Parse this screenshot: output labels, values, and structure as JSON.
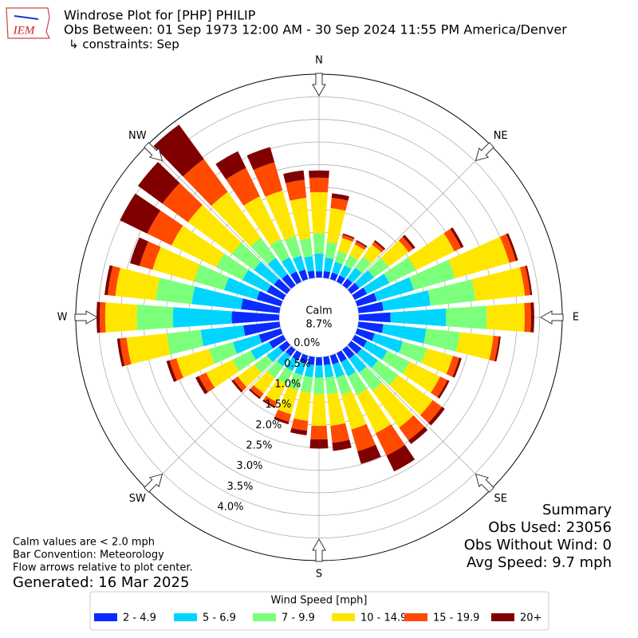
{
  "chart_data": {
    "type": "windrose",
    "logo_text": "IEM",
    "title": "Windrose Plot for [PHP] PHILIP",
    "subtitle": "Obs Between: 01 Sep 1973 12:00 AM - 30 Sep 2024 11:55 PM America/Denver",
    "constraints": "↳ constraints: Sep",
    "x": [
      0,
      10,
      20,
      30,
      40,
      50,
      60,
      70,
      80,
      90,
      100,
      110,
      120,
      130,
      140,
      150,
      160,
      170,
      180,
      190,
      200,
      210,
      220,
      230,
      240,
      250,
      260,
      270,
      280,
      290,
      300,
      310,
      320,
      330,
      340,
      350
    ],
    "series": [
      {
        "name": "2 - 4.9",
        "color": "#0a2bff",
        "values": [
          0.14,
          0.15,
          0.15,
          0.15,
          0.18,
          0.22,
          0.3,
          0.45,
          0.55,
          0.7,
          0.55,
          0.4,
          0.3,
          0.28,
          0.25,
          0.22,
          0.2,
          0.18,
          0.18,
          0.18,
          0.18,
          0.18,
          0.18,
          0.22,
          0.35,
          0.5,
          0.8,
          1.05,
          0.85,
          0.55,
          0.4,
          0.35,
          0.3,
          0.25,
          0.22,
          0.16
        ]
      },
      {
        "name": "5 - 6.9",
        "color": "#00d5ff",
        "values": [
          0.39,
          0.3,
          0.25,
          0.25,
          0.3,
          0.4,
          0.55,
          0.85,
          1.05,
          1.23,
          0.95,
          0.65,
          0.5,
          0.45,
          0.38,
          0.35,
          0.3,
          0.28,
          0.27,
          0.27,
          0.27,
          0.26,
          0.28,
          0.32,
          0.45,
          0.6,
          0.95,
          1.3,
          1.1,
          0.75,
          0.6,
          0.55,
          0.45,
          0.35,
          0.32,
          0.32
        ]
      },
      {
        "name": "7 - 9.9",
        "color": "#7cff7a",
        "values": [
          0.45,
          0.35,
          0.25,
          0.25,
          0.3,
          0.4,
          0.65,
          0.95,
          1.0,
          0.9,
          0.75,
          0.55,
          0.55,
          0.55,
          0.5,
          0.45,
          0.4,
          0.37,
          0.37,
          0.35,
          0.35,
          0.32,
          0.32,
          0.35,
          0.45,
          0.55,
          0.75,
          0.8,
          0.8,
          0.7,
          0.65,
          0.6,
          0.55,
          0.45,
          0.45,
          0.4
        ]
      },
      {
        "name": "10 - 14.9",
        "color": "#ffe600",
        "values": [
          0.91,
          0.75,
          0.3,
          0.27,
          0.33,
          0.55,
          0.95,
          1.25,
          1.1,
          0.84,
          0.75,
          0.6,
          0.75,
          0.95,
          1.0,
          0.95,
          0.8,
          0.7,
          0.7,
          0.62,
          0.55,
          0.45,
          0.42,
          0.45,
          0.65,
          0.75,
          0.9,
          0.7,
          0.9,
          0.95,
          1.1,
          1.2,
          1.25,
          1.05,
          1.05,
          0.9
        ]
      },
      {
        "name": "15 - 19.9",
        "color": "#ff4a00",
        "values": [
          0.32,
          0.23,
          0.07,
          0.07,
          0.08,
          0.12,
          0.17,
          0.15,
          0.12,
          0.14,
          0.12,
          0.15,
          0.18,
          0.25,
          0.35,
          0.55,
          0.5,
          0.38,
          0.3,
          0.22,
          0.17,
          0.1,
          0.11,
          0.12,
          0.18,
          0.16,
          0.15,
          0.12,
          0.17,
          0.3,
          0.6,
          0.7,
          0.9,
          0.7,
          0.65,
          0.4
        ]
      },
      {
        "name": "20+",
        "color": "#800000",
        "values": [
          0.16,
          0.1,
          0.03,
          0.03,
          0.04,
          0.06,
          0.06,
          0.05,
          0.04,
          0.07,
          0.04,
          0.05,
          0.05,
          0.08,
          0.1,
          0.39,
          0.29,
          0.18,
          0.2,
          0.1,
          0.06,
          0.04,
          0.04,
          0.05,
          0.08,
          0.07,
          0.06,
          0.07,
          0.07,
          0.22,
          0.67,
          0.67,
          0.94,
          0.41,
          0.35,
          0.21
        ]
      }
    ],
    "ylim": [
      0,
      4.5
    ],
    "yticks": [
      {
        "value": 0,
        "label": "0.0%"
      },
      {
        "value": 0.5,
        "label": "0.5%"
      },
      {
        "value": 1.0,
        "label": "1.0%"
      },
      {
        "value": 1.5,
        "label": "1.5%"
      },
      {
        "value": 2.0,
        "label": "2.0%"
      },
      {
        "value": 2.5,
        "label": "2.5%"
      },
      {
        "value": 3.0,
        "label": "3.0%"
      },
      {
        "value": 3.5,
        "label": "3.5%"
      },
      {
        "value": 4.0,
        "label": "4.0%"
      }
    ],
    "grid": true,
    "compass_labels": [
      "N",
      "NE",
      "E",
      "SE",
      "S",
      "SW",
      "W",
      "NW"
    ],
    "calm": {
      "label": "Calm",
      "value": 8.7,
      "value_label": "8.7%"
    },
    "legend_title": "Wind Speed [mph]",
    "summary": [
      "Summary",
      "Obs Used: 23056",
      "Obs Without Wind: 0",
      "Avg Speed: 9.7 mph"
    ],
    "notes": [
      "Calm values are < 2.0 mph",
      "Bar Convention: Meteorology",
      "Flow arrows relative to plot center."
    ],
    "generated": "Generated: 16 Mar 2025"
  }
}
